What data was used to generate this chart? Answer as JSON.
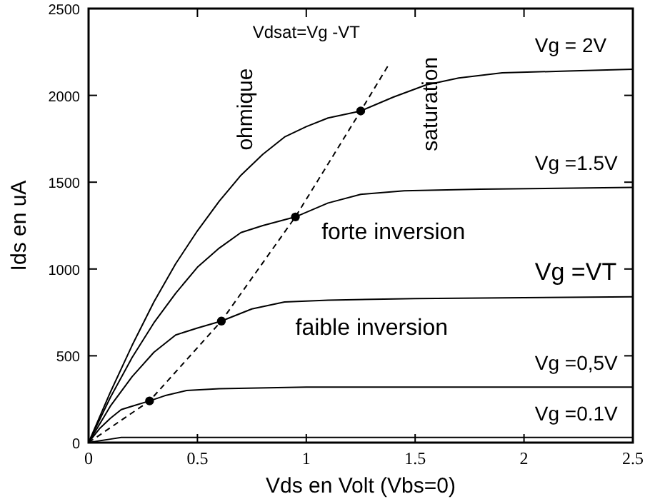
{
  "chart_data": {
    "type": "line",
    "xlabel": "Vds en Volt (Vbs=0)",
    "ylabel": "Ids en uA",
    "xlim": [
      0,
      2.5
    ],
    "ylim": [
      0,
      2500
    ],
    "xticks": [
      0,
      0.5,
      1,
      1.5,
      2,
      2.5
    ],
    "yticks": [
      0,
      500,
      1000,
      1500,
      2000,
      2500
    ],
    "grid": false,
    "legend": "right",
    "marker": "none",
    "series": [
      {
        "name": "Vg  = 2V",
        "color": "#000000",
        "x": [
          0,
          0.1,
          0.2,
          0.3,
          0.4,
          0.5,
          0.6,
          0.7,
          0.8,
          0.9,
          1.0,
          1.1,
          1.25,
          1.4,
          1.55,
          1.7,
          1.9,
          2.2,
          2.5
        ],
        "values": [
          0,
          290,
          560,
          810,
          1030,
          1220,
          1390,
          1540,
          1660,
          1760,
          1820,
          1870,
          1910,
          1990,
          2060,
          2100,
          2130,
          2140,
          2150
        ]
      },
      {
        "name": "Vg  =1.5V",
        "color": "#000000",
        "x": [
          0,
          0.1,
          0.2,
          0.3,
          0.4,
          0.5,
          0.6,
          0.7,
          0.8,
          0.95,
          1.1,
          1.25,
          1.45,
          1.8,
          2.5
        ],
        "values": [
          0,
          260,
          490,
          690,
          860,
          1010,
          1120,
          1210,
          1250,
          1300,
          1380,
          1430,
          1450,
          1460,
          1470
        ]
      },
      {
        "name": "Vg  =VT",
        "color": "#000000",
        "x": [
          0,
          0.1,
          0.2,
          0.3,
          0.4,
          0.5,
          0.61,
          0.75,
          0.9,
          1.1,
          1.5,
          2.5
        ],
        "values": [
          0,
          210,
          380,
          520,
          620,
          660,
          700,
          770,
          810,
          820,
          830,
          840
        ]
      },
      {
        "name": "Vg  =0,5V",
        "color": "#000000",
        "x": [
          0,
          0.05,
          0.1,
          0.15,
          0.2,
          0.28,
          0.35,
          0.45,
          0.6,
          1.0,
          2.5
        ],
        "values": [
          0,
          80,
          140,
          190,
          210,
          240,
          270,
          300,
          310,
          320,
          320
        ]
      },
      {
        "name": "Vg  =0.1V",
        "color": "#000000",
        "x": [
          0,
          0.05,
          0.1,
          0.15,
          2.5
        ],
        "values": [
          0,
          10,
          20,
          30,
          30
        ]
      },
      {
        "type": "line",
        "line_style": "dashed",
        "color": "#000000",
        "x": [
          0,
          0.28,
          0.61,
          0.95,
          1.25,
          1.38
        ],
        "values": [
          0,
          240,
          700,
          1300,
          1910,
          2180
        ]
      },
      {
        "type": "scatter",
        "marker": "circle",
        "color": "#000000",
        "x": [
          0.28,
          0.61,
          0.95,
          1.25
        ],
        "values": [
          240,
          700,
          1300,
          1910
        ]
      }
    ],
    "annotations": [
      "Vdsat=Vg  -VT",
      "ohmique",
      "saturation",
      "forte inversion",
      "faible inversion"
    ]
  }
}
